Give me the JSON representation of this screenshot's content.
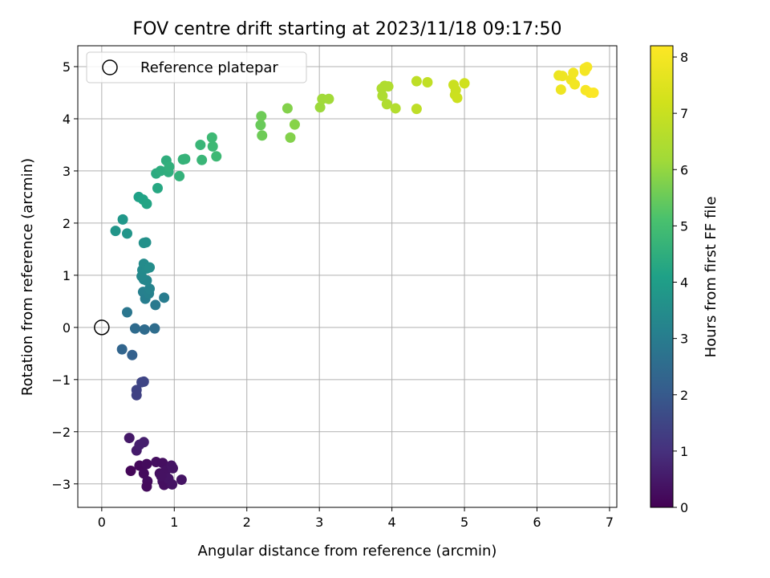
{
  "chart_data": {
    "type": "scatter",
    "title": "FOV centre drift starting at 2023/11/18 09:17:50",
    "xlabel": "Angular distance from reference (arcmin)",
    "ylabel": "Rotation from reference (arcmin)",
    "xlim": [
      -0.33,
      7.1
    ],
    "ylim": [
      -3.45,
      5.4
    ],
    "xticks": [
      0,
      1,
      2,
      3,
      4,
      5,
      6,
      7
    ],
    "yticks": [
      -3,
      -2,
      -1,
      0,
      1,
      2,
      3,
      4,
      5
    ],
    "grid": true,
    "legend": {
      "placement": "top-left",
      "entries": [
        "Reference platepar"
      ]
    },
    "reference_point": {
      "label": "Reference platepar",
      "x": 0,
      "y": 0,
      "marker": "open-circle"
    },
    "colorbar": {
      "label": "Hours from first FF file",
      "colormap": "viridis",
      "range": [
        0,
        8.2
      ],
      "ticks": [
        0,
        1,
        2,
        3,
        4,
        5,
        6,
        7,
        8
      ]
    },
    "points": [
      {
        "x": 0.4,
        "y": -2.75,
        "c": 0.1
      },
      {
        "x": 0.52,
        "y": -2.65,
        "c": 0.15
      },
      {
        "x": 0.58,
        "y": -2.8,
        "c": 0.2
      },
      {
        "x": 0.62,
        "y": -2.62,
        "c": 0.2
      },
      {
        "x": 0.63,
        "y": -2.95,
        "c": 0.25
      },
      {
        "x": 0.62,
        "y": -3.05,
        "c": 0.2
      },
      {
        "x": 0.75,
        "y": -2.58,
        "c": 0.3
      },
      {
        "x": 0.8,
        "y": -2.8,
        "c": 0.3
      },
      {
        "x": 0.84,
        "y": -2.6,
        "c": 0.3
      },
      {
        "x": 0.84,
        "y": -2.95,
        "c": 0.35
      },
      {
        "x": 0.86,
        "y": -3.02,
        "c": 0.3
      },
      {
        "x": 0.88,
        "y": -2.75,
        "c": 0.35
      },
      {
        "x": 0.92,
        "y": -2.9,
        "c": 0.4
      },
      {
        "x": 0.96,
        "y": -2.65,
        "c": 0.4
      },
      {
        "x": 0.98,
        "y": -2.7,
        "c": 0.4
      },
      {
        "x": 0.97,
        "y": -3.01,
        "c": 0.4
      },
      {
        "x": 1.1,
        "y": -2.92,
        "c": 0.4
      },
      {
        "x": 0.82,
        "y": -2.85,
        "c": 0.35
      },
      {
        "x": 0.38,
        "y": -2.12,
        "c": 0.5
      },
      {
        "x": 0.48,
        "y": -2.36,
        "c": 0.55
      },
      {
        "x": 0.52,
        "y": -2.25,
        "c": 0.6
      },
      {
        "x": 0.58,
        "y": -2.2,
        "c": 0.6
      },
      {
        "x": 0.55,
        "y": -1.05,
        "c": 1.5
      },
      {
        "x": 0.58,
        "y": -1.04,
        "c": 1.5
      },
      {
        "x": 0.48,
        "y": -1.2,
        "c": 1.45
      },
      {
        "x": 0.48,
        "y": -1.3,
        "c": 1.4
      },
      {
        "x": 0.28,
        "y": -0.42,
        "c": 2.3
      },
      {
        "x": 0.42,
        "y": -0.53,
        "c": 2.2
      },
      {
        "x": 0.35,
        "y": 0.29,
        "c": 2.8
      },
      {
        "x": 0.46,
        "y": -0.02,
        "c": 2.5
      },
      {
        "x": 0.59,
        "y": -0.04,
        "c": 2.5
      },
      {
        "x": 0.73,
        "y": -0.02,
        "c": 2.55
      },
      {
        "x": 0.74,
        "y": 0.43,
        "c": 2.9
      },
      {
        "x": 0.86,
        "y": 0.57,
        "c": 3.0
      },
      {
        "x": 0.57,
        "y": 0.68,
        "c": 3.1
      },
      {
        "x": 0.6,
        "y": 0.55,
        "c": 3.05
      },
      {
        "x": 0.65,
        "y": 0.65,
        "c": 3.15
      },
      {
        "x": 0.66,
        "y": 0.74,
        "c": 3.2
      },
      {
        "x": 0.58,
        "y": 0.92,
        "c": 3.3
      },
      {
        "x": 0.62,
        "y": 0.9,
        "c": 3.3
      },
      {
        "x": 0.55,
        "y": 0.98,
        "c": 3.35
      },
      {
        "x": 0.56,
        "y": 1.1,
        "c": 3.4
      },
      {
        "x": 0.58,
        "y": 1.22,
        "c": 3.45
      },
      {
        "x": 0.62,
        "y": 1.13,
        "c": 3.45
      },
      {
        "x": 0.66,
        "y": 1.15,
        "c": 3.5
      },
      {
        "x": 0.58,
        "y": 1.62,
        "c": 3.6
      },
      {
        "x": 0.61,
        "y": 1.63,
        "c": 3.6
      },
      {
        "x": 0.19,
        "y": 1.85,
        "c": 3.75
      },
      {
        "x": 0.35,
        "y": 1.8,
        "c": 3.75
      },
      {
        "x": 0.29,
        "y": 2.07,
        "c": 3.8
      },
      {
        "x": 0.51,
        "y": 2.5,
        "c": 4.1
      },
      {
        "x": 0.57,
        "y": 2.45,
        "c": 4.15
      },
      {
        "x": 0.62,
        "y": 2.37,
        "c": 4.2
      },
      {
        "x": 0.77,
        "y": 2.67,
        "c": 4.3
      },
      {
        "x": 0.75,
        "y": 2.95,
        "c": 4.4
      },
      {
        "x": 0.81,
        "y": 3.0,
        "c": 4.45
      },
      {
        "x": 0.89,
        "y": 3.2,
        "c": 4.5
      },
      {
        "x": 0.92,
        "y": 2.98,
        "c": 4.5
      },
      {
        "x": 0.93,
        "y": 3.08,
        "c": 4.55
      },
      {
        "x": 1.07,
        "y": 2.9,
        "c": 4.6
      },
      {
        "x": 1.12,
        "y": 3.22,
        "c": 4.65
      },
      {
        "x": 1.15,
        "y": 3.23,
        "c": 4.65
      },
      {
        "x": 1.36,
        "y": 3.5,
        "c": 4.75
      },
      {
        "x": 1.38,
        "y": 3.21,
        "c": 4.75
      },
      {
        "x": 1.52,
        "y": 3.64,
        "c": 4.85
      },
      {
        "x": 1.53,
        "y": 3.47,
        "c": 4.85
      },
      {
        "x": 1.58,
        "y": 3.28,
        "c": 4.85
      },
      {
        "x": 2.19,
        "y": 3.88,
        "c": 5.5
      },
      {
        "x": 2.2,
        "y": 4.05,
        "c": 5.55
      },
      {
        "x": 2.21,
        "y": 3.68,
        "c": 5.55
      },
      {
        "x": 2.56,
        "y": 4.2,
        "c": 5.8
      },
      {
        "x": 2.6,
        "y": 3.64,
        "c": 5.8
      },
      {
        "x": 2.66,
        "y": 3.89,
        "c": 5.85
      },
      {
        "x": 3.01,
        "y": 4.22,
        "c": 6.1
      },
      {
        "x": 3.04,
        "y": 4.38,
        "c": 6.15
      },
      {
        "x": 3.13,
        "y": 4.38,
        "c": 6.2
      },
      {
        "x": 3.86,
        "y": 4.58,
        "c": 6.45
      },
      {
        "x": 3.87,
        "y": 4.44,
        "c": 6.45
      },
      {
        "x": 3.9,
        "y": 4.63,
        "c": 6.5
      },
      {
        "x": 3.95,
        "y": 4.62,
        "c": 6.5
      },
      {
        "x": 3.93,
        "y": 4.28,
        "c": 6.5
      },
      {
        "x": 4.05,
        "y": 4.2,
        "c": 6.55
      },
      {
        "x": 4.34,
        "y": 4.72,
        "c": 6.8
      },
      {
        "x": 4.49,
        "y": 4.7,
        "c": 6.85
      },
      {
        "x": 4.34,
        "y": 4.19,
        "c": 6.8
      },
      {
        "x": 4.85,
        "y": 4.65,
        "c": 7.05
      },
      {
        "x": 4.88,
        "y": 4.55,
        "c": 7.05
      },
      {
        "x": 4.87,
        "y": 4.46,
        "c": 7.05
      },
      {
        "x": 4.9,
        "y": 4.4,
        "c": 7.1
      },
      {
        "x": 5.0,
        "y": 4.68,
        "c": 7.15
      },
      {
        "x": 6.3,
        "y": 4.83,
        "c": 7.8
      },
      {
        "x": 6.35,
        "y": 4.82,
        "c": 7.85
      },
      {
        "x": 6.33,
        "y": 4.56,
        "c": 7.85
      },
      {
        "x": 6.47,
        "y": 4.75,
        "c": 7.9
      },
      {
        "x": 6.5,
        "y": 4.88,
        "c": 7.95
      },
      {
        "x": 6.52,
        "y": 4.66,
        "c": 7.95
      },
      {
        "x": 6.66,
        "y": 4.97,
        "c": 8.0
      },
      {
        "x": 6.69,
        "y": 4.99,
        "c": 8.05
      },
      {
        "x": 6.66,
        "y": 4.92,
        "c": 8.0
      },
      {
        "x": 6.67,
        "y": 4.55,
        "c": 8.05
      },
      {
        "x": 6.73,
        "y": 4.5,
        "c": 8.1
      },
      {
        "x": 6.78,
        "y": 4.5,
        "c": 8.15
      }
    ]
  }
}
